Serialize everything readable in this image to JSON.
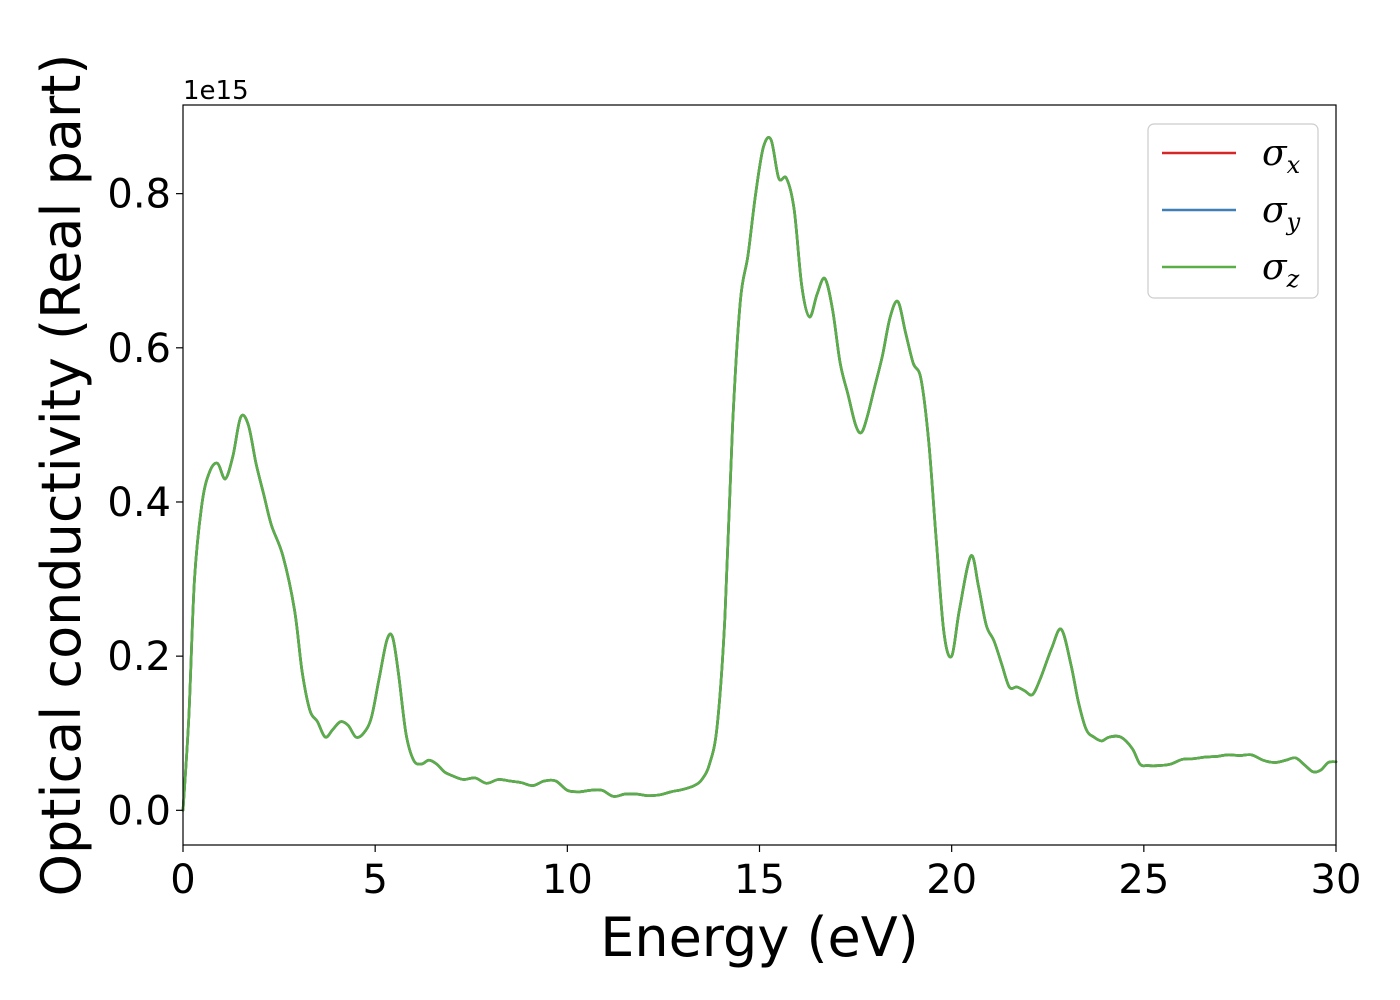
{
  "chart_data": {
    "type": "line",
    "title": "",
    "xlabel": "Energy (eV)",
    "ylabel": "Optical conductivity (Real part)",
    "y_offset_label": "1e15",
    "y_scale": 1000000000000000.0,
    "xlim": [
      0,
      30
    ],
    "ylim": [
      -0.045,
      0.915
    ],
    "xticks": [
      0,
      5,
      10,
      15,
      20,
      25,
      30
    ],
    "xtick_labels": [
      "0",
      "5",
      "10",
      "15",
      "20",
      "25",
      "30"
    ],
    "yticks": [
      0.0,
      0.2,
      0.4,
      0.6,
      0.8
    ],
    "ytick_labels": [
      "0.0",
      "0.2",
      "0.4",
      "0.6",
      "0.8"
    ],
    "grid": false,
    "legend": {
      "placement": "top-right",
      "entries": [
        {
          "symbol": "σ",
          "subscript": "x",
          "color": "#d62728"
        },
        {
          "symbol": "σ",
          "subscript": "y",
          "color": "#3f7fb5"
        },
        {
          "symbol": "σ",
          "subscript": "z",
          "color": "#59ae48"
        }
      ]
    },
    "x": [
      0,
      0.15,
      0.3,
      0.5,
      0.7,
      0.9,
      1.1,
      1.3,
      1.5,
      1.7,
      1.9,
      2.1,
      2.3,
      2.6,
      2.9,
      3.1,
      3.3,
      3.5,
      3.7,
      3.9,
      4.1,
      4.3,
      4.5,
      4.7,
      4.9,
      5.1,
      5.3,
      5.45,
      5.6,
      5.8,
      6.0,
      6.2,
      6.4,
      6.6,
      6.8,
      7.0,
      7.3,
      7.6,
      7.9,
      8.2,
      8.5,
      8.8,
      9.1,
      9.4,
      9.7,
      10.0,
      10.3,
      10.6,
      10.9,
      11.2,
      11.5,
      11.8,
      12.1,
      12.4,
      12.7,
      13.0,
      13.3,
      13.5,
      13.7,
      13.9,
      14.1,
      14.3,
      14.5,
      14.7,
      14.9,
      15.1,
      15.3,
      15.5,
      15.7,
      15.9,
      16.1,
      16.3,
      16.5,
      16.7,
      16.9,
      17.1,
      17.3,
      17.5,
      17.65,
      17.8,
      18.0,
      18.2,
      18.4,
      18.6,
      18.8,
      19.0,
      19.2,
      19.4,
      19.6,
      19.8,
      20.0,
      20.2,
      20.5,
      20.7,
      20.9,
      21.1,
      21.3,
      21.5,
      21.7,
      21.9,
      22.1,
      22.3,
      22.6,
      22.85,
      23.1,
      23.3,
      23.5,
      23.7,
      23.9,
      24.1,
      24.4,
      24.7,
      24.9,
      25.1,
      25.4,
      25.7,
      26.0,
      26.3,
      26.6,
      26.9,
      27.2,
      27.5,
      27.8,
      28.1,
      28.4,
      28.7,
      28.95,
      29.2,
      29.4,
      29.6,
      29.8,
      30.0
    ],
    "series": [
      {
        "color": "#d62728",
        "values": [
          0.0,
          0.12,
          0.3,
          0.4,
          0.44,
          0.45,
          0.43,
          0.46,
          0.51,
          0.5,
          0.45,
          0.41,
          0.37,
          0.33,
          0.26,
          0.18,
          0.13,
          0.115,
          0.095,
          0.105,
          0.115,
          0.11,
          0.095,
          0.1,
          0.12,
          0.17,
          0.22,
          0.225,
          0.18,
          0.1,
          0.065,
          0.06,
          0.065,
          0.06,
          0.05,
          0.045,
          0.04,
          0.042,
          0.035,
          0.04,
          0.038,
          0.036,
          0.032,
          0.038,
          0.038,
          0.026,
          0.024,
          0.026,
          0.026,
          0.018,
          0.021,
          0.021,
          0.019,
          0.02,
          0.024,
          0.027,
          0.032,
          0.04,
          0.06,
          0.11,
          0.25,
          0.5,
          0.66,
          0.72,
          0.8,
          0.86,
          0.87,
          0.82,
          0.82,
          0.78,
          0.68,
          0.64,
          0.67,
          0.69,
          0.65,
          0.58,
          0.54,
          0.5,
          0.49,
          0.51,
          0.55,
          0.59,
          0.64,
          0.66,
          0.62,
          0.58,
          0.56,
          0.48,
          0.35,
          0.23,
          0.2,
          0.26,
          0.33,
          0.29,
          0.24,
          0.22,
          0.19,
          0.16,
          0.16,
          0.155,
          0.15,
          0.17,
          0.21,
          0.235,
          0.19,
          0.14,
          0.105,
          0.095,
          0.09,
          0.095,
          0.095,
          0.08,
          0.06,
          0.058,
          0.058,
          0.06,
          0.066,
          0.067,
          0.069,
          0.07,
          0.072,
          0.071,
          0.072,
          0.065,
          0.062,
          0.065,
          0.068,
          0.058,
          0.05,
          0.052,
          0.062,
          0.063
        ]
      },
      {
        "color": "#3f7fb5",
        "values": [
          0.0,
          0.12,
          0.3,
          0.4,
          0.44,
          0.45,
          0.43,
          0.46,
          0.51,
          0.5,
          0.45,
          0.41,
          0.37,
          0.33,
          0.26,
          0.18,
          0.13,
          0.115,
          0.095,
          0.105,
          0.115,
          0.11,
          0.095,
          0.1,
          0.12,
          0.17,
          0.22,
          0.225,
          0.18,
          0.1,
          0.065,
          0.06,
          0.065,
          0.06,
          0.05,
          0.045,
          0.04,
          0.042,
          0.035,
          0.04,
          0.038,
          0.036,
          0.032,
          0.038,
          0.038,
          0.026,
          0.024,
          0.026,
          0.026,
          0.018,
          0.021,
          0.021,
          0.019,
          0.02,
          0.024,
          0.027,
          0.032,
          0.04,
          0.06,
          0.11,
          0.25,
          0.5,
          0.66,
          0.72,
          0.8,
          0.86,
          0.87,
          0.82,
          0.82,
          0.78,
          0.68,
          0.64,
          0.67,
          0.69,
          0.65,
          0.58,
          0.54,
          0.5,
          0.49,
          0.51,
          0.55,
          0.59,
          0.64,
          0.66,
          0.62,
          0.58,
          0.56,
          0.48,
          0.35,
          0.23,
          0.2,
          0.26,
          0.33,
          0.29,
          0.24,
          0.22,
          0.19,
          0.16,
          0.16,
          0.155,
          0.15,
          0.17,
          0.21,
          0.235,
          0.19,
          0.14,
          0.105,
          0.095,
          0.09,
          0.095,
          0.095,
          0.08,
          0.06,
          0.058,
          0.058,
          0.06,
          0.066,
          0.067,
          0.069,
          0.07,
          0.072,
          0.071,
          0.072,
          0.065,
          0.062,
          0.065,
          0.068,
          0.058,
          0.05,
          0.052,
          0.062,
          0.063
        ]
      },
      {
        "color": "#59ae48",
        "values": [
          0.0,
          0.12,
          0.3,
          0.4,
          0.44,
          0.45,
          0.43,
          0.46,
          0.51,
          0.5,
          0.45,
          0.41,
          0.37,
          0.33,
          0.26,
          0.18,
          0.13,
          0.115,
          0.095,
          0.105,
          0.115,
          0.11,
          0.095,
          0.1,
          0.12,
          0.17,
          0.22,
          0.225,
          0.18,
          0.1,
          0.065,
          0.06,
          0.065,
          0.06,
          0.05,
          0.045,
          0.04,
          0.042,
          0.035,
          0.04,
          0.038,
          0.036,
          0.032,
          0.038,
          0.038,
          0.026,
          0.024,
          0.026,
          0.026,
          0.018,
          0.021,
          0.021,
          0.019,
          0.02,
          0.024,
          0.027,
          0.032,
          0.04,
          0.06,
          0.11,
          0.25,
          0.5,
          0.66,
          0.72,
          0.8,
          0.86,
          0.87,
          0.82,
          0.82,
          0.78,
          0.68,
          0.64,
          0.67,
          0.69,
          0.65,
          0.58,
          0.54,
          0.5,
          0.49,
          0.51,
          0.55,
          0.59,
          0.64,
          0.66,
          0.62,
          0.58,
          0.56,
          0.48,
          0.35,
          0.23,
          0.2,
          0.26,
          0.33,
          0.29,
          0.24,
          0.22,
          0.19,
          0.16,
          0.16,
          0.155,
          0.15,
          0.17,
          0.21,
          0.235,
          0.19,
          0.14,
          0.105,
          0.095,
          0.09,
          0.095,
          0.095,
          0.08,
          0.06,
          0.058,
          0.058,
          0.06,
          0.066,
          0.067,
          0.069,
          0.07,
          0.072,
          0.071,
          0.072,
          0.065,
          0.062,
          0.065,
          0.068,
          0.058,
          0.05,
          0.052,
          0.062,
          0.063
        ]
      }
    ]
  }
}
